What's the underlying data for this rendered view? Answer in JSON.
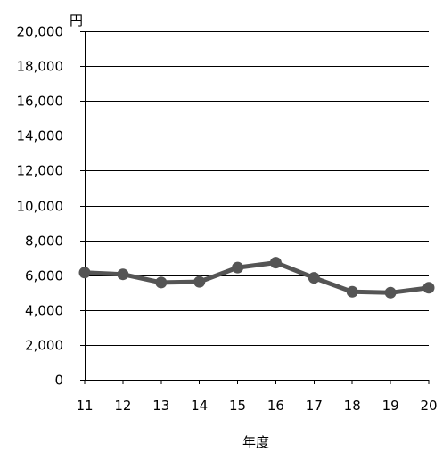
{
  "chart_data": {
    "type": "line",
    "title": "",
    "xlabel": "年度",
    "ylabel": "円",
    "categories": [
      "11",
      "12",
      "13",
      "14",
      "15",
      "16",
      "17",
      "18",
      "19",
      "20"
    ],
    "series": [
      {
        "values": [
          6150,
          6050,
          5580,
          5620,
          6440,
          6720,
          5850,
          5050,
          5000,
          5280
        ]
      }
    ],
    "ylim": [
      0,
      20000
    ],
    "yticks": [
      0,
      2000,
      4000,
      6000,
      8000,
      10000,
      12000,
      14000,
      16000,
      18000,
      20000
    ],
    "ytick_labels": [
      "0",
      "2,000",
      "4,000",
      "6,000",
      "8,000",
      "10,000",
      "12,000",
      "14,000",
      "16,000",
      "18,000",
      "20,000"
    ],
    "grid": true,
    "legend": "none",
    "colors": {
      "line": "#555555",
      "marker": "#555555",
      "grid": "#000000",
      "axis": "#000000"
    }
  }
}
